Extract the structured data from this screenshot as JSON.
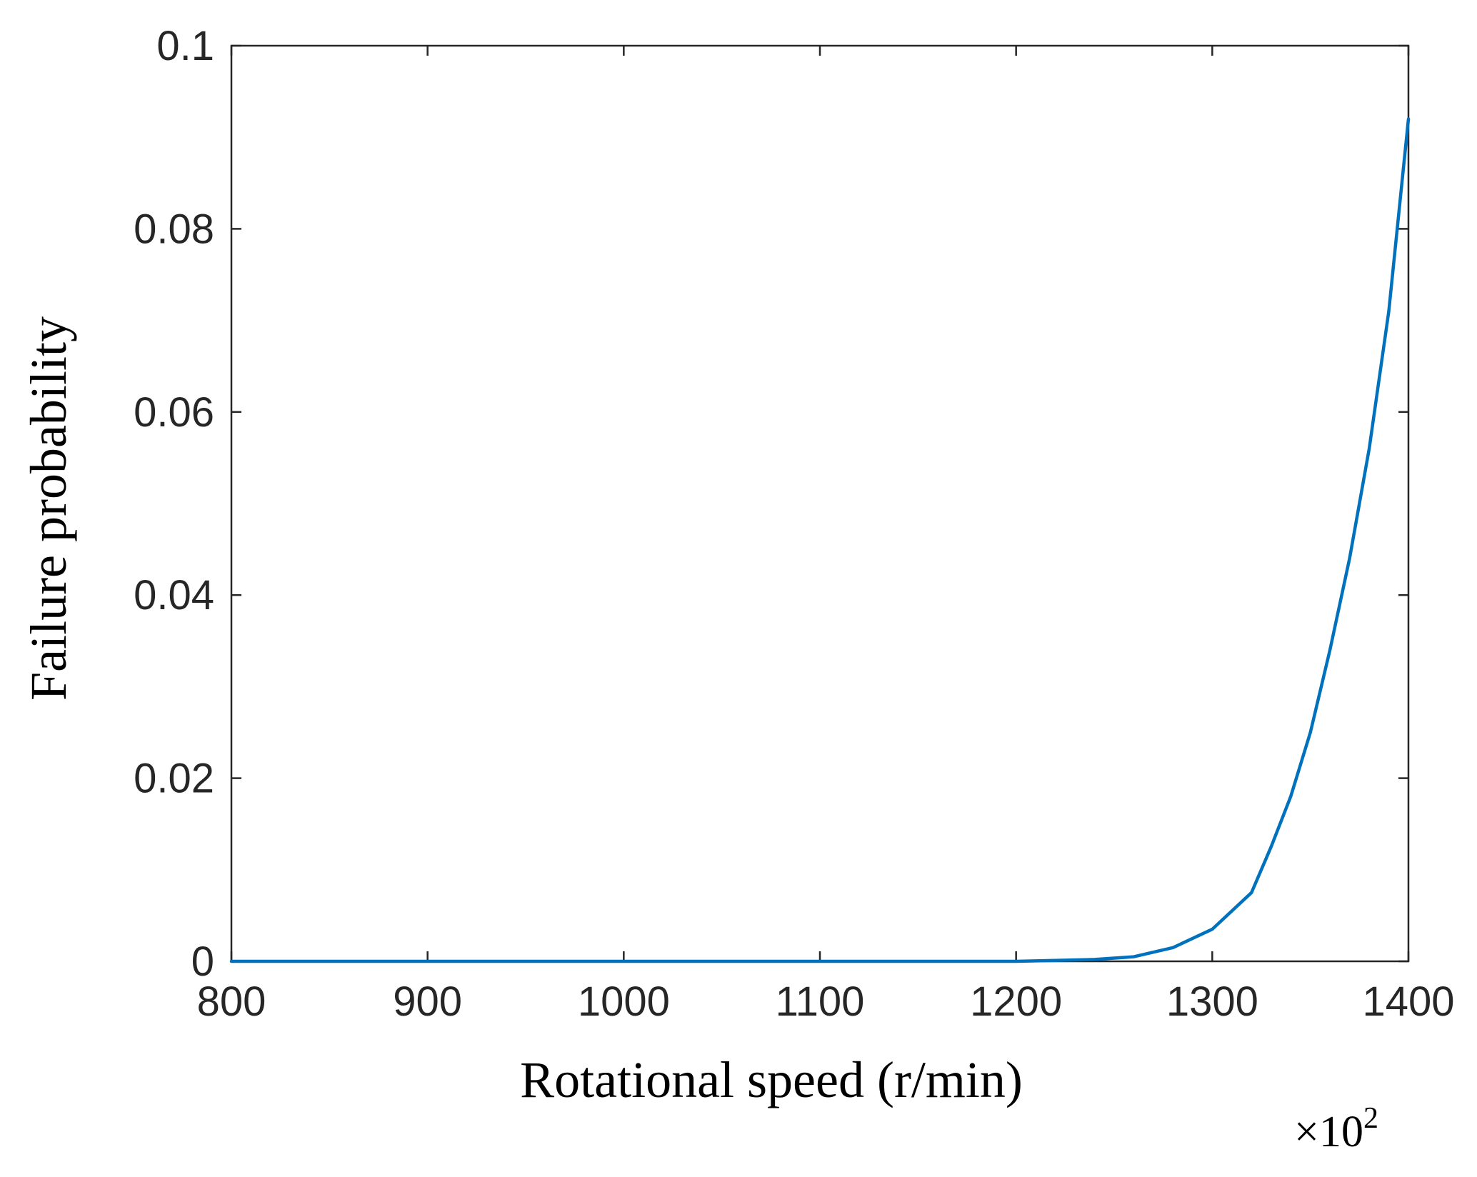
{
  "chart_data": {
    "type": "line",
    "title": "",
    "xlabel": "Rotational speed  (r/min)",
    "ylabel": "Failure probability",
    "x_scale_note": {
      "prefix": "×10",
      "exponent": "2"
    },
    "xlim": [
      800,
      1400
    ],
    "ylim": [
      0,
      0.1
    ],
    "x_ticks": [
      800,
      900,
      1000,
      1100,
      1200,
      1300,
      1400
    ],
    "x_tick_labels": [
      "800",
      "900",
      "1000",
      "1100",
      "1200",
      "1300",
      "1400"
    ],
    "y_ticks": [
      0,
      0.02,
      0.04,
      0.06,
      0.08,
      0.1
    ],
    "y_tick_labels": [
      "0",
      "0.02",
      "0.04",
      "0.06",
      "0.08",
      "0.1"
    ],
    "grid": false,
    "box": true,
    "series": [
      {
        "color": "#0072BD",
        "x": [
          800,
          900,
          1000,
          1100,
          1200,
          1220,
          1240,
          1260,
          1280,
          1300,
          1320,
          1330,
          1340,
          1350,
          1360,
          1370,
          1380,
          1390,
          1400
        ],
        "y": [
          0,
          0,
          0,
          0,
          0,
          0.0001,
          0.0002,
          0.0005,
          0.0015,
          0.0035,
          0.0075,
          0.0125,
          0.018,
          0.025,
          0.034,
          0.044,
          0.056,
          0.071,
          0.092
        ]
      }
    ]
  }
}
